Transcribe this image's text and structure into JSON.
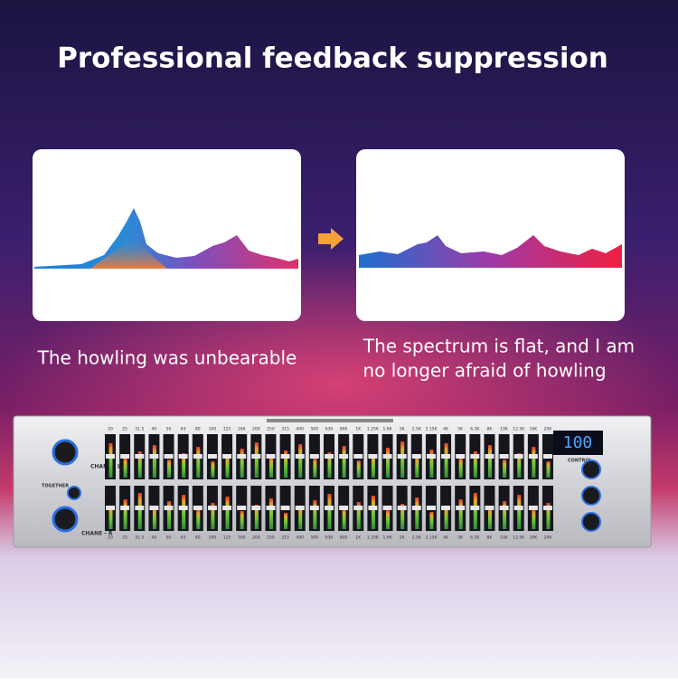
{
  "header": {
    "title": "Professional feedback suppression"
  },
  "captions": {
    "before": "The howling was unbearable",
    "after_line1": "The spectrum is flat, and I am",
    "after_line2": "no longer afraid of howling"
  },
  "device": {
    "bands": [
      "20",
      "25",
      "31.5",
      "40",
      "50",
      "63",
      "80",
      "100",
      "125",
      "160",
      "200",
      "250",
      "315",
      "400",
      "500",
      "630",
      "800",
      "1K",
      "1.25K",
      "1.6K",
      "2K",
      "2.5K",
      "3.15K",
      "4K",
      "5K",
      "6.3K",
      "8K",
      "10K",
      "12.5K",
      "16K",
      "20K"
    ],
    "display": "100",
    "left_channel": "CHANE - L",
    "right_channel": "CHANE - R",
    "together": "TOGETHER",
    "control": "CONTROL"
  }
}
